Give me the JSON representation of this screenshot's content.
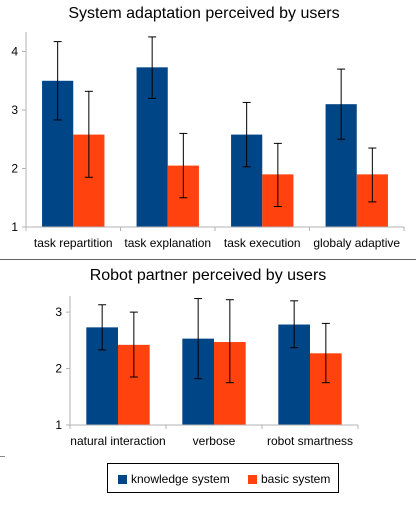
{
  "chart_data": [
    {
      "type": "bar",
      "title": "System adaptation perceived by users",
      "categories": [
        "task repartition",
        "task explanation",
        "task execution",
        "globaly adaptive"
      ],
      "ylim": [
        1,
        4.3
      ],
      "yticks": [
        1,
        2,
        3,
        4
      ],
      "grid": false,
      "series": [
        {
          "name": "knowledge system",
          "color": "#004586",
          "values": [
            3.5,
            3.73,
            2.58,
            3.1
          ],
          "errors": [
            [
              2.83,
              4.17
            ],
            [
              3.2,
              4.25
            ],
            [
              2.03,
              3.13
            ],
            [
              2.5,
              3.7
            ]
          ]
        },
        {
          "name": "basic system",
          "color": "#ff420e",
          "values": [
            2.58,
            2.05,
            1.9,
            1.9
          ],
          "errors": [
            [
              1.85,
              3.32
            ],
            [
              1.5,
              2.6
            ],
            [
              1.35,
              2.43
            ],
            [
              1.43,
              2.35
            ]
          ]
        }
      ]
    },
    {
      "type": "bar",
      "title": "Robot partner perceived by users",
      "categories": [
        "natural interaction",
        "verbose",
        "robot smartness"
      ],
      "ylim": [
        1,
        3.25
      ],
      "yticks": [
        1,
        2,
        3
      ],
      "grid": false,
      "series": [
        {
          "name": "knowledge system",
          "color": "#004586",
          "values": [
            2.73,
            2.53,
            2.78
          ],
          "errors": [
            [
              2.33,
              3.13
            ],
            [
              1.82,
              3.24
            ],
            [
              2.37,
              3.2
            ]
          ]
        },
        {
          "name": "basic system",
          "color": "#ff420e",
          "values": [
            2.42,
            2.47,
            2.27
          ],
          "errors": [
            [
              1.85,
              3.0
            ],
            [
              1.75,
              3.22
            ],
            [
              1.75,
              2.8
            ]
          ]
        }
      ]
    }
  ],
  "legend": {
    "position": "bottom-center",
    "items": [
      {
        "label": "knowledge system",
        "color": "#004586"
      },
      {
        "label": "basic system",
        "color": "#ff420e"
      }
    ]
  }
}
